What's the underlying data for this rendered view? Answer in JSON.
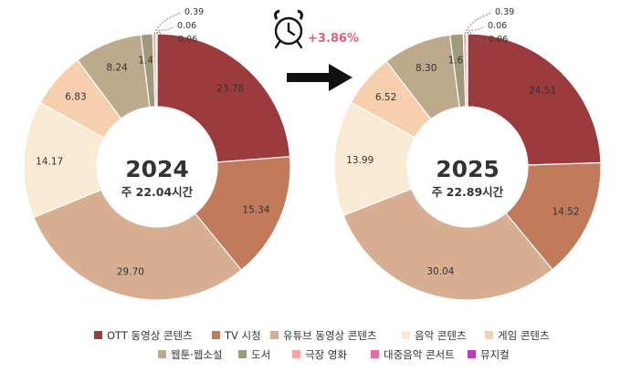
{
  "chart_data": [
    {
      "type": "pie",
      "year": "2024",
      "total_label": "주 22.04시간",
      "categories": [
        "OTT 동영상 콘텐츠",
        "TV 시청",
        "유튜브 동영상 콘텐츠",
        "음악 콘텐츠",
        "게임 콘텐츠",
        "웹툰·웹소설",
        "도서",
        "극장 영화",
        "대중음악 콘서트",
        "뮤지컬"
      ],
      "values": [
        23.78,
        15.34,
        29.7,
        14.17,
        6.83,
        8.24,
        1.44,
        0.39,
        0.06,
        0.06
      ],
      "value_labels": [
        "23.78",
        "15.34",
        "29.70",
        "14.17",
        "6.83",
        "8.24",
        "1.44",
        "0.39",
        "0.06",
        "0.06"
      ]
    },
    {
      "type": "pie",
      "year": "2025",
      "total_label": "주 22.89시간",
      "categories": [
        "OTT 동영상 콘텐츠",
        "TV 시청",
        "유튜브 동영상 콘텐츠",
        "음악 콘텐츠",
        "게임 콘텐츠",
        "웹툰·웹소설",
        "도서",
        "극장 영화",
        "대중음악 콘서트",
        "뮤지컬"
      ],
      "values": [
        24.51,
        14.52,
        30.04,
        13.99,
        6.52,
        8.3,
        1.61,
        0.39,
        0.06,
        0.06
      ],
      "value_labels": [
        "24.51",
        "14.52",
        "30.04",
        "13.99",
        "6.52",
        "8.30",
        "1.61",
        "0.39",
        "0.06",
        "0.06"
      ]
    }
  ],
  "growth_label": "+3.86%",
  "colors": [
    "#9b3b3d",
    "#c17a5a",
    "#d8ae93",
    "#f8ead3",
    "#f6cfaf",
    "#bda98c",
    "#a09a7c",
    "#f3a6a3",
    "#e96a9f",
    "#b93fb8"
  ],
  "legend": [
    {
      "label": "OTT 동영상 콘텐츠"
    },
    {
      "label": "TV 시청"
    },
    {
      "label": "유튜브 동영상 콘텐츠"
    },
    {
      "label": "음악 콘텐츠"
    },
    {
      "label": "게임 콘텐츠"
    },
    {
      "label": "웹툰·웹소설"
    },
    {
      "label": "도서"
    },
    {
      "label": "극장 영화"
    },
    {
      "label": "대중음악 콘서트"
    },
    {
      "label": "뮤지컬"
    }
  ]
}
